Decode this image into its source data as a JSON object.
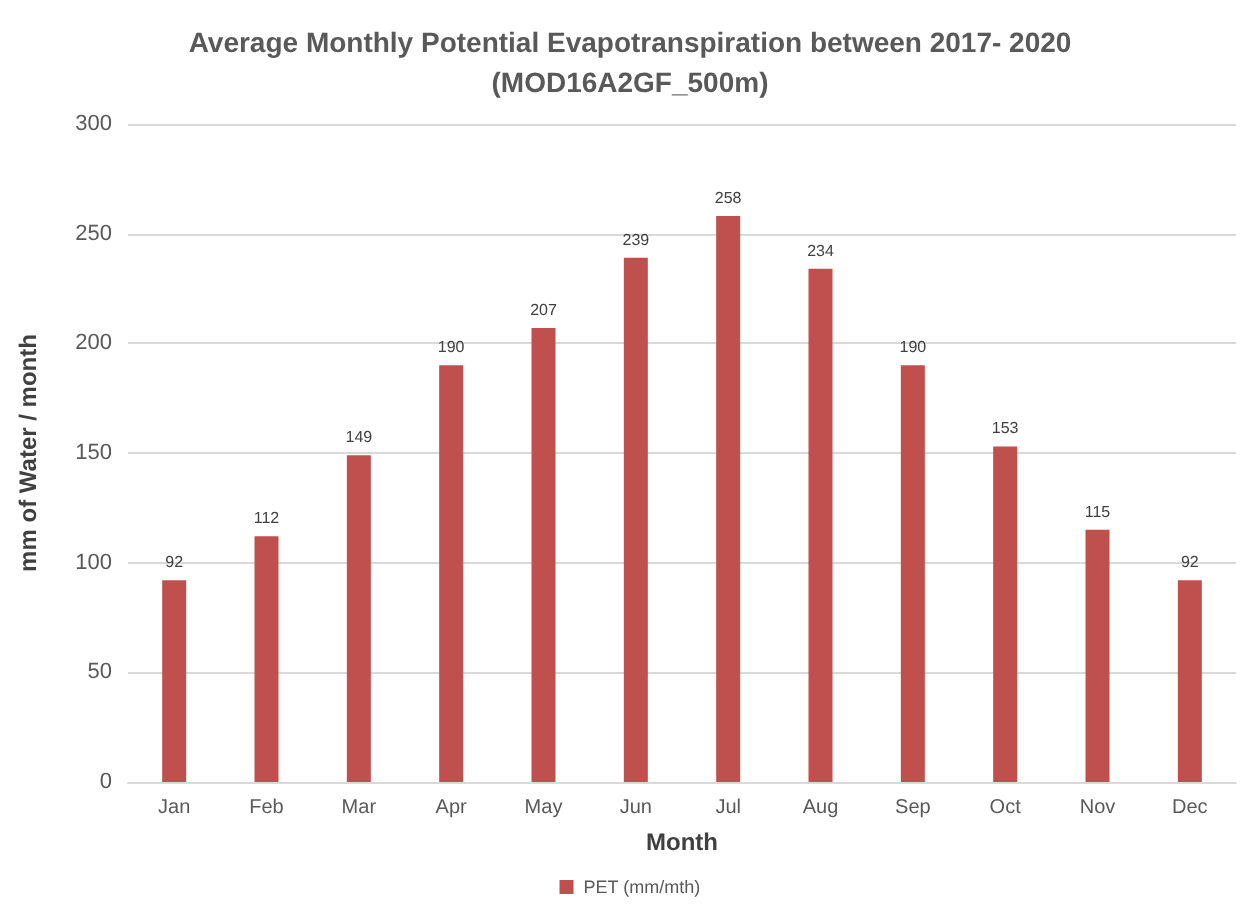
{
  "chart_data": {
    "type": "bar",
    "title": "Average Monthly Potential Evapotranspiration between 2017- 2020\n(MOD16A2GF_500m)",
    "xlabel": "Month",
    "ylabel": "mm of Water / month",
    "categories": [
      "Jan",
      "Feb",
      "Mar",
      "Apr",
      "May",
      "Jun",
      "Jul",
      "Aug",
      "Sep",
      "Oct",
      "Nov",
      "Dec"
    ],
    "series": [
      {
        "name": "PET (mm/mth)",
        "color": "#c0504d",
        "values": [
          92,
          112,
          149,
          190,
          207,
          239,
          258,
          234,
          190,
          153,
          115,
          92
        ]
      }
    ],
    "ylim": [
      0,
      300
    ],
    "yticks": [
      0,
      50,
      100,
      150,
      200,
      250,
      300
    ],
    "grid": "y",
    "legend": "bottom",
    "data_labels": true
  }
}
